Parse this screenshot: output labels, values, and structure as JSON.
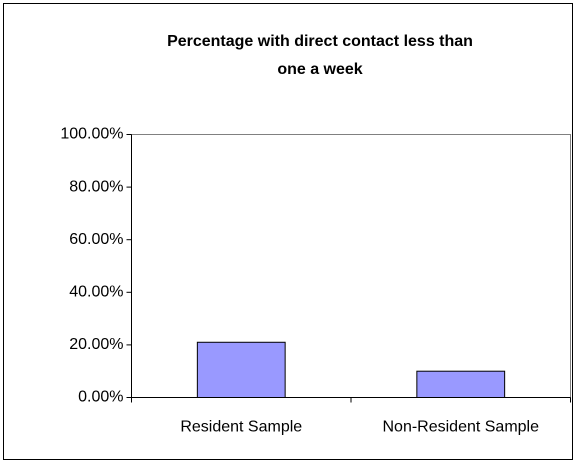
{
  "chart_data": {
    "type": "bar",
    "title": [
      "Percentage with direct contact less than",
      "one a week"
    ],
    "categories": [
      "Resident Sample",
      "Non-Resident Sample"
    ],
    "values": [
      21,
      10
    ],
    "color": "#9999ff",
    "ylim": [
      0,
      100
    ],
    "yticks": [
      {
        "value": 0,
        "label": "0.00%"
      },
      {
        "value": 20,
        "label": "20.00%"
      },
      {
        "value": 40,
        "label": "40.00%"
      },
      {
        "value": 60,
        "label": "60.00%"
      },
      {
        "value": 80,
        "label": "80.00%"
      },
      {
        "value": 100,
        "label": "100.00%"
      }
    ],
    "grid": false
  }
}
